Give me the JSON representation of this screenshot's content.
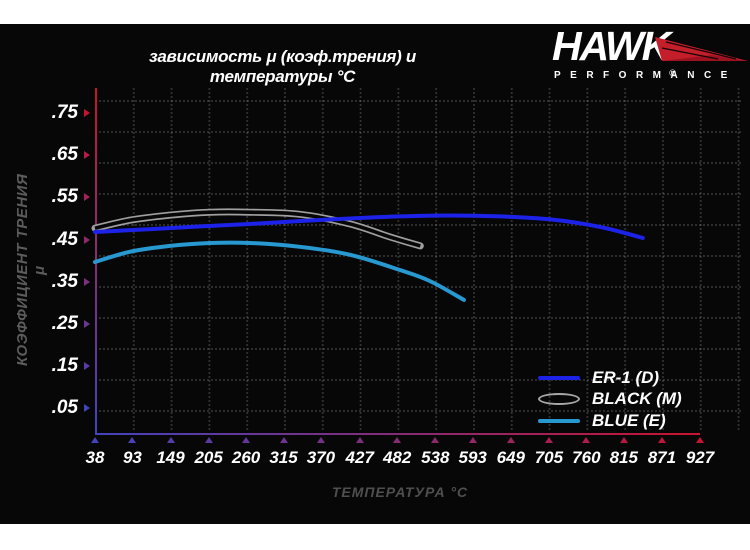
{
  "header": {
    "title": "зависимость μ (коэф.трения) и температуры °C"
  },
  "logo": {
    "brand": "HAWK",
    "registered": "®",
    "tagline": "PERFORMANCE",
    "wing_color": "#c41e2a"
  },
  "colors": {
    "panel_bg": "#070707",
    "axis_red": "#c81430",
    "axis_blue": "#4343bd",
    "grid_dot": "rgba(150,160,150,0.30)",
    "tick_text": "#ffffff",
    "muted_text": "#5c5c5c"
  },
  "chart_data": {
    "type": "line",
    "title": "зависимость μ (коэф.трения) и температуры °C",
    "xlabel": "ТЕМПЕРАТУРА °C",
    "ylabel": "КОЭФФИЦИЕНТ ТРЕНИЯ μ",
    "x_ticks": [
      38,
      93,
      149,
      205,
      260,
      315,
      370,
      427,
      482,
      538,
      593,
      649,
      705,
      760,
      815,
      871,
      927
    ],
    "y_ticks": [
      ".75",
      ".65",
      ".55",
      ".45",
      ".35",
      ".25",
      ".15",
      ".05"
    ],
    "xlim": [
      38,
      927
    ],
    "ylim": [
      0.05,
      0.75
    ],
    "grid": "dotted",
    "legend_position": "bottom-right",
    "series": [
      {
        "name": "BLACK (M)",
        "color": "#9f9f9f",
        "style": "outline",
        "points": [
          [
            38,
            0.477
          ],
          [
            89,
            0.496
          ],
          [
            148,
            0.508
          ],
          [
            207,
            0.515
          ],
          [
            266,
            0.515
          ],
          [
            339,
            0.51
          ],
          [
            413,
            0.487
          ],
          [
            472,
            0.456
          ],
          [
            516,
            0.435
          ]
        ]
      },
      {
        "name": "BLUE (E)",
        "color": "#2798d0",
        "style": "line",
        "points": [
          [
            38,
            0.397
          ],
          [
            89,
            0.421
          ],
          [
            148,
            0.435
          ],
          [
            207,
            0.442
          ],
          [
            266,
            0.442
          ],
          [
            339,
            0.433
          ],
          [
            413,
            0.414
          ],
          [
            486,
            0.378
          ],
          [
            530,
            0.352
          ],
          [
            580,
            0.307
          ]
        ]
      },
      {
        "name": "ER-1 (D)",
        "color": "#1d22e8",
        "style": "line",
        "points": [
          [
            38,
            0.468
          ],
          [
            120,
            0.475
          ],
          [
            190,
            0.481
          ],
          [
            265,
            0.487
          ],
          [
            340,
            0.494
          ],
          [
            413,
            0.5
          ],
          [
            486,
            0.505
          ],
          [
            560,
            0.507
          ],
          [
            633,
            0.505
          ],
          [
            706,
            0.498
          ],
          [
            780,
            0.48
          ],
          [
            843,
            0.454
          ]
        ]
      }
    ],
    "legend_order": [
      "ER-1 (D)",
      "BLACK (M)",
      "BLUE (E)"
    ]
  }
}
